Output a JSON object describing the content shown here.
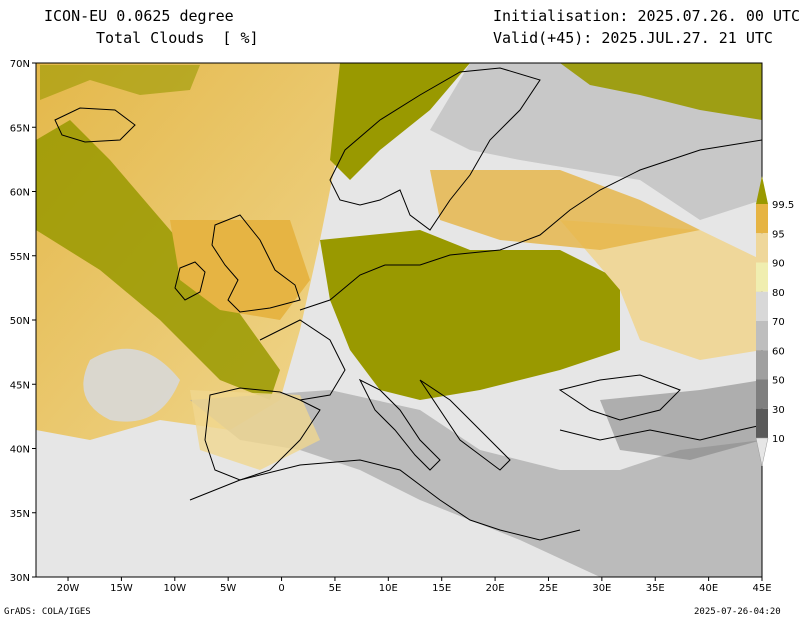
{
  "header": {
    "model": "ICON-EU 0.0625 degree",
    "field": "Total Clouds  [ %]",
    "init": "Initialisation: 2025.07.26. 00 UTC",
    "valid": "Valid(+45): 2025.JUL.27. 21 UTC"
  },
  "map": {
    "lon_range": [
      -23,
      45
    ],
    "lat_range": [
      30,
      70
    ],
    "lat_ticks": [
      "30N",
      "35N",
      "40N",
      "45N",
      "50N",
      "55N",
      "60N",
      "65N",
      "70N"
    ],
    "lon_ticks": [
      "20W",
      "15W",
      "10W",
      "5W",
      "0",
      "5E",
      "10E",
      "15E",
      "20E",
      "25E",
      "30E",
      "35E",
      "40E",
      "45E"
    ]
  },
  "legend": {
    "labels": [
      "10",
      "30",
      "50",
      "60",
      "70",
      "80",
      "90",
      "95",
      "99.5"
    ],
    "colors": {
      "lt10": "#e6e6e6",
      "10_30": "#5a5a5a",
      "30_50": "#7f7f7f",
      "50_60": "#a0a0a0",
      "60_70": "#bebebe",
      "70_80": "#d8d8d8",
      "80_90": "#f0eeb0",
      "90_95": "#efd79a",
      "95_99_5": "#e6b443",
      "gt99_5": "#999900"
    }
  },
  "footer": {
    "left": "GrADS: COLA/IGES",
    "right": "2025-07-26-04:20"
  }
}
